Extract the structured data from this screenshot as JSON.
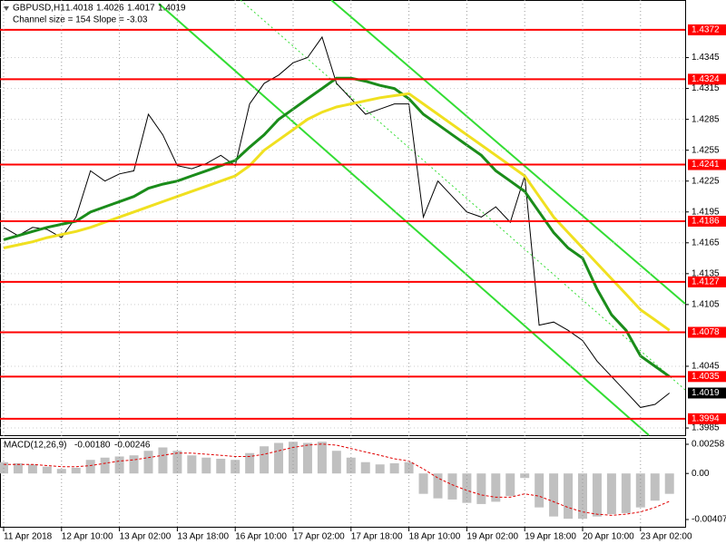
{
  "chart_data": [
    {
      "type": "line",
      "title": "GBPUSD,H1",
      "ohlc": [
        1.4018,
        1.4026,
        1.4017,
        1.4019
      ],
      "subtitle": "Channel size = 154 Slope = -3.03",
      "ylim": [
        1.3978,
        1.4401
      ],
      "yticks": [
        1.4345,
        1.4315,
        1.4285,
        1.4255,
        1.4225,
        1.4195,
        1.4165,
        1.4135,
        1.4105,
        1.4045,
        1.3985
      ],
      "grid": true,
      "levels": [
        1.4372,
        1.4324,
        1.4241,
        1.4186,
        1.4127,
        1.4078,
        1.4035,
        1.3994
      ],
      "level_color": "#ff0000",
      "series": [
        {
          "color": "#000000",
          "values": [
            1.418,
            1.4172,
            1.418,
            1.4178,
            1.417,
            1.419,
            1.4235,
            1.4225,
            1.4232,
            1.4235,
            1.429,
            1.427,
            1.424,
            1.4237,
            1.4242,
            1.425,
            1.424,
            1.43,
            1.432,
            1.4328,
            1.434,
            1.4345,
            1.4365,
            1.432,
            1.4305,
            1.429,
            1.4295,
            1.43,
            1.43,
            1.419,
            1.4225,
            1.421,
            1.4195,
            1.419,
            1.42,
            1.4185,
            1.423,
            1.4085,
            1.4088,
            1.408,
            1.407,
            1.405,
            1.4035,
            1.402,
            1.4005,
            1.4008,
            1.4019
          ]
        },
        {
          "color": "#1a8c1a",
          "values": [
            1.4168,
            1.4172,
            1.4176,
            1.418,
            1.4183,
            1.4186,
            1.4195,
            1.42,
            1.4205,
            1.421,
            1.4218,
            1.4222,
            1.4225,
            1.423,
            1.4235,
            1.424,
            1.4245,
            1.4258,
            1.427,
            1.4285,
            1.4295,
            1.4305,
            1.4315,
            1.4325,
            1.4325,
            1.4322,
            1.4318,
            1.4315,
            1.4305,
            1.429,
            1.428,
            1.427,
            1.426,
            1.425,
            1.4235,
            1.4225,
            1.4215,
            1.4195,
            1.4175,
            1.416,
            1.415,
            1.412,
            1.4095,
            1.408,
            1.4055,
            1.4045,
            1.4035
          ]
        },
        {
          "color": "#f0e020",
          "values": [
            1.416,
            1.4163,
            1.4166,
            1.417,
            1.4173,
            1.4176,
            1.418,
            1.4185,
            1.419,
            1.4195,
            1.42,
            1.4205,
            1.421,
            1.4215,
            1.422,
            1.4225,
            1.423,
            1.424,
            1.4255,
            1.4265,
            1.4275,
            1.4285,
            1.4292,
            1.4297,
            1.43,
            1.4303,
            1.4306,
            1.4308,
            1.431,
            1.43,
            1.429,
            1.428,
            1.427,
            1.426,
            1.425,
            1.424,
            1.423,
            1.421,
            1.419,
            1.4175,
            1.416,
            1.4145,
            1.413,
            1.4115,
            1.41,
            1.409,
            1.408
          ]
        }
      ]
    },
    {
      "type": "bar",
      "title": "MACD(12,26,9)",
      "header_values": [
        {
          "value": -0.0018,
          "label": "-0.00180"
        },
        -0.00246
      ],
      "categories": [
        "11 Apr 2018",
        null,
        null,
        null,
        "12 Apr 10:00",
        null,
        null,
        null,
        "13 Apr 02:00",
        null,
        null,
        null,
        "13 Apr 18:00",
        null,
        null,
        null,
        "16 Apr 10:00",
        null,
        null,
        null,
        "17 Apr 02:00",
        null,
        null,
        null,
        "17 Apr 18:00",
        null,
        null,
        null,
        "18 Apr 10:00",
        null,
        null,
        null,
        "19 Apr 02:00",
        null,
        null,
        null,
        "19 Apr 18:00",
        null,
        null,
        null,
        "20 Apr 10:00",
        null,
        null,
        null,
        "23 Apr 02:00",
        null,
        null
      ],
      "ylim": [
        -0.00479,
        0.00306
      ],
      "yticks": [
        0.00258,
        {
          "value": 0,
          "label": "0.00"
        },
        -0.00407
      ],
      "color": "#c0c0c0",
      "values": [
        0.001,
        0.0009,
        0.0008,
        0.0006,
        0.0004,
        0.0005,
        0.0012,
        0.0014,
        0.0015,
        0.0016,
        0.002,
        0.0023,
        0.002,
        0.0016,
        0.0014,
        0.0013,
        0.0012,
        0.0018,
        0.0024,
        0.0027,
        0.0028,
        0.0027,
        0.0028,
        0.002,
        0.0014,
        0.001,
        0.0008,
        0.0009,
        0.001,
        -0.0018,
        -0.0022,
        -0.0023,
        -0.0026,
        -0.0027,
        -0.0025,
        -0.002,
        -0.0004,
        -0.003,
        -0.0038,
        -0.004,
        -0.004,
        -0.0038,
        -0.0036,
        -0.0035,
        -0.003,
        -0.0024,
        -0.0018
      ],
      "signal": {
        "color": "#e00000",
        "values": [
          0.0008,
          0.0008,
          0.0008,
          0.0007,
          0.0006,
          0.0006,
          0.0007,
          0.0009,
          0.0011,
          0.0012,
          0.0014,
          0.0016,
          0.0018,
          0.0018,
          0.0017,
          0.0016,
          0.0015,
          0.0015,
          0.0017,
          0.002,
          0.0023,
          0.0025,
          0.0026,
          0.0025,
          0.0022,
          0.0019,
          0.0016,
          0.0013,
          0.0011,
          0.0004,
          -0.0004,
          -0.001,
          -0.0015,
          -0.0019,
          -0.0021,
          -0.0021,
          -0.0018,
          -0.002,
          -0.0025,
          -0.003,
          -0.0034,
          -0.0036,
          -0.0037,
          -0.0036,
          -0.0034,
          -0.003,
          -0.00246
        ]
      }
    }
  ]
}
